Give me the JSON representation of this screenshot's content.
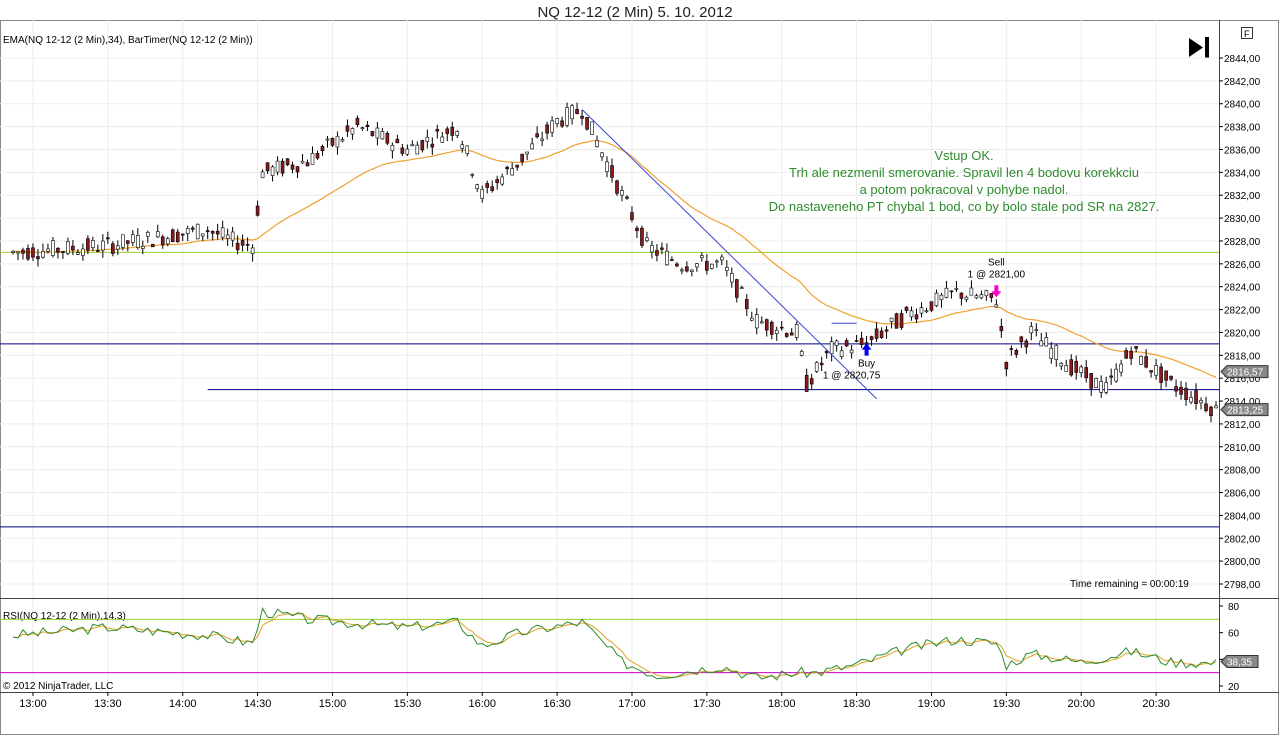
{
  "window": {
    "title": "NQ 12-12 (2 Min)  5. 10. 2012",
    "f_button": "F",
    "copyright": "© 2012 NinjaTrader, LLC",
    "time_remaining": "Time remaining = 00:00:19",
    "colors": {
      "candle_up": "#ffffff",
      "candle_down": "#8b1a1a",
      "ema": "#f0a030",
      "rsi": "#2e8b2e",
      "rsi_avg": "#e0a020",
      "hline": "#000080",
      "green_line": "#9acd32",
      "magenta_line": "#cc00cc",
      "annotation": "#2e8b2e",
      "buy": "#0000ee",
      "sell": "#ff00cc"
    }
  },
  "chart_data": [
    {
      "type": "candlestick",
      "indicator_label": "EMA(NQ 12-12 (2 Min),34), BarTimer(NQ 12-12 (2 Min))",
      "ylim": [
        2797,
        2845
      ],
      "yticks": [
        "2844,00",
        "2842,00",
        "2840,00",
        "2838,00",
        "2836,00",
        "2834,00",
        "2832,00",
        "2830,00",
        "2828,00",
        "2826,00",
        "2824,00",
        "2822,00",
        "2820,00",
        "2818,00",
        "2816,00",
        "2814,00",
        "2812,00",
        "2810,00",
        "2808,00",
        "2806,00",
        "2804,00",
        "2802,00",
        "2800,00",
        "2798,00"
      ],
      "ytick_values": [
        2844,
        2842,
        2840,
        2838,
        2836,
        2834,
        2832,
        2830,
        2828,
        2826,
        2824,
        2822,
        2820,
        2818,
        2816,
        2814,
        2812,
        2810,
        2808,
        2806,
        2804,
        2802,
        2800,
        2798
      ],
      "xticks": [
        "13:00",
        "13:30",
        "14:00",
        "14:30",
        "15:00",
        "15:30",
        "16:00",
        "16:30",
        "17:00",
        "17:30",
        "18:00",
        "18:30",
        "19:00",
        "19:30",
        "20:00",
        "20:30"
      ],
      "x_range": [
        "12:52",
        "20:54"
      ],
      "grid": true,
      "horizontal_lines": [
        {
          "value": 2827,
          "color": "#9acd32"
        },
        {
          "value": 2819,
          "color": "#000080"
        },
        {
          "value": 2815,
          "color": "#000080",
          "from": "14:10"
        },
        {
          "value": 2803,
          "color": "#000080"
        }
      ],
      "trend_line": {
        "from": [
          "16:40",
          2839.5
        ],
        "to": [
          "18:38",
          2814.2
        ],
        "color": "#3344cc"
      },
      "short_line": {
        "from": [
          "18:20",
          2820.8
        ],
        "to": [
          "18:30",
          2820.8
        ],
        "color": "#3344cc"
      },
      "price_markers": [
        {
          "value": 2816.57,
          "label": "2816,57"
        },
        {
          "value": 2813.25,
          "label": "2813,25"
        }
      ],
      "annotation": {
        "lines": [
          "Vstup OK.",
          "Trh ale nezmenil smerovanie. Spravil len 4 bodovu korekkciu",
          "a potom pokracoval v pohybe nadol.",
          "Do nastaveneho PT chybal 1 bod, co by bolo stale pod SR na 2827."
        ]
      },
      "trades": [
        {
          "side": "Buy",
          "label": "Buy",
          "fill": "1 @ 2820,75",
          "time": "18:34",
          "price": 2818.5
        },
        {
          "side": "Sell",
          "label": "Sell",
          "fill": "1 @ 2821,00",
          "time": "19:26",
          "price": 2823.6
        }
      ],
      "keypoints": [
        [
          "12:52",
          2827.0
        ],
        [
          "13:30",
          2827.6
        ],
        [
          "14:10",
          2829.0
        ],
        [
          "14:20",
          2828.0
        ],
        [
          "14:28",
          2827.6
        ],
        [
          "14:32",
          2834.0
        ],
        [
          "14:50",
          2835.0
        ],
        [
          "15:10",
          2838.0
        ],
        [
          "15:30",
          2836.0
        ],
        [
          "15:50",
          2838.0
        ],
        [
          "16:00",
          2832.0
        ],
        [
          "16:15",
          2835.0
        ],
        [
          "16:30",
          2838.5
        ],
        [
          "16:40",
          2839.5
        ],
        [
          "16:56",
          2832.0
        ],
        [
          "17:06",
          2827.5
        ],
        [
          "17:20",
          2826.0
        ],
        [
          "17:36",
          2826.0
        ],
        [
          "17:50",
          2821.0
        ],
        [
          "18:06",
          2820.0
        ],
        [
          "18:10",
          2815.5
        ],
        [
          "18:20",
          2818.5
        ],
        [
          "18:34",
          2819.0
        ],
        [
          "18:50",
          2821.5
        ],
        [
          "19:10",
          2823.5
        ],
        [
          "19:26",
          2822.8
        ],
        [
          "19:30",
          2817.5
        ],
        [
          "19:40",
          2820.0
        ],
        [
          "19:56",
          2817.0
        ],
        [
          "20:10",
          2815.0
        ],
        [
          "20:20",
          2818.5
        ],
        [
          "20:36",
          2815.5
        ],
        [
          "20:48",
          2814.0
        ],
        [
          "20:54",
          2813.25
        ]
      ]
    },
    {
      "type": "line",
      "indicator_label": "RSI(NQ 12-12 (2 Min),14,3)",
      "ylim": [
        18,
        82
      ],
      "yticks": [
        "80",
        "60",
        "40",
        "20"
      ],
      "ytick_values": [
        80,
        60,
        40,
        20
      ],
      "horizontal_lines": [
        {
          "value": 70,
          "color": "#9acd32"
        },
        {
          "value": 30,
          "color": "#cc00cc"
        }
      ],
      "price_markers": [
        {
          "value": 38.35,
          "label": "38,35"
        }
      ],
      "keypoints": [
        [
          "12:52",
          58
        ],
        [
          "13:30",
          64
        ],
        [
          "14:10",
          58
        ],
        [
          "14:28",
          52
        ],
        [
          "14:32",
          76
        ],
        [
          "14:50",
          70
        ],
        [
          "15:30",
          64
        ],
        [
          "15:50",
          68
        ],
        [
          "16:00",
          50
        ],
        [
          "16:15",
          60
        ],
        [
          "16:40",
          68
        ],
        [
          "16:56",
          38
        ],
        [
          "17:10",
          28
        ],
        [
          "17:36",
          35
        ],
        [
          "17:50",
          26
        ],
        [
          "18:06",
          30
        ],
        [
          "18:14",
          30
        ],
        [
          "18:30",
          36
        ],
        [
          "18:50",
          48
        ],
        [
          "19:10",
          55
        ],
        [
          "19:26",
          52
        ],
        [
          "19:30",
          36
        ],
        [
          "19:40",
          44
        ],
        [
          "20:00",
          38
        ],
        [
          "20:20",
          46
        ],
        [
          "20:36",
          38
        ],
        [
          "20:54",
          37
        ]
      ]
    }
  ]
}
